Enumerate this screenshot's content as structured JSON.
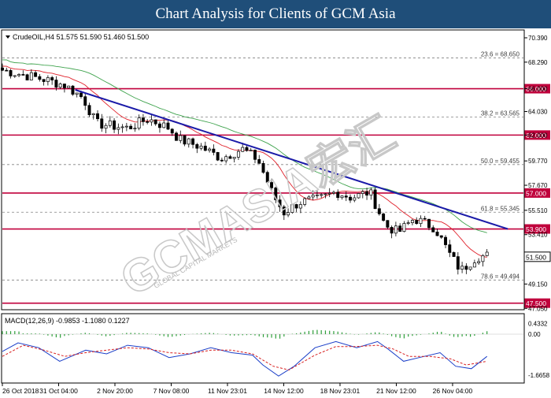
{
  "title": "Chart Analysis for Clients of GCM Asia",
  "watermark": "GCMASIA宏汇",
  "watermark_sub": "GLOBAL CAPITAL MARKETS",
  "chart_data": {
    "type": "candlestick",
    "symbol_info": "CrudeOIL,H4  51.575 51.590 51.460 51.500",
    "price_axis": {
      "ylim": [
        47.0,
        71.0
      ],
      "ticks": [
        "70.390",
        "68.290",
        "66.000",
        "64.030",
        "62.000",
        "59.770",
        "57.670",
        "55.510",
        "53.410",
        "51.500",
        "49.150",
        "47.050"
      ]
    },
    "x_labels": [
      "26 Oct 2018",
      "31 Oct 04:00",
      "2 Nov 20:00",
      "7 Nov 08:00",
      "11 Nov 23:01",
      "14 Nov 12:00",
      "18 Nov 23:01",
      "21 Nov 12:00",
      "26 Nov 04:00"
    ],
    "current_price": "51.500",
    "support_resistance": [
      {
        "value": 66.0,
        "label": "66.000"
      },
      {
        "value": 62.0,
        "label": "62.000"
      },
      {
        "value": 57.0,
        "label": "57.000"
      },
      {
        "value": 53.9,
        "label": "53.900"
      },
      {
        "value": 47.5,
        "label": "47.500"
      }
    ],
    "fibonacci": [
      {
        "value": 68.65,
        "label": "23.6 = 68.650"
      },
      {
        "value": 63.565,
        "label": "38.2 = 63.565"
      },
      {
        "value": 59.455,
        "label": "50.0 = 59.455"
      },
      {
        "value": 55.345,
        "label": "61.8 = 55.345"
      },
      {
        "value": 49.494,
        "label": "78.6 = 49.494"
      }
    ],
    "trendline": {
      "start": [
        0.14,
        65.9
      ],
      "end": [
        0.97,
        53.9
      ]
    },
    "close_path": [
      [
        0.0,
        67.6
      ],
      [
        0.04,
        67.2
      ],
      [
        0.08,
        66.8
      ],
      [
        0.12,
        66.3
      ],
      [
        0.155,
        65.2
      ],
      [
        0.18,
        63.0
      ],
      [
        0.24,
        62.6
      ],
      [
        0.28,
        63.4
      ],
      [
        0.32,
        62.6
      ],
      [
        0.34,
        61.6
      ],
      [
        0.38,
        61.0
      ],
      [
        0.42,
        60.0
      ],
      [
        0.46,
        60.8
      ],
      [
        0.49,
        59.9
      ],
      [
        0.52,
        56.8
      ],
      [
        0.54,
        55.3
      ],
      [
        0.57,
        56.2
      ],
      [
        0.61,
        56.5
      ],
      [
        0.64,
        57.1
      ],
      [
        0.67,
        56.6
      ],
      [
        0.705,
        57.1
      ],
      [
        0.735,
        54.2
      ],
      [
        0.76,
        53.6
      ],
      [
        0.79,
        54.8
      ],
      [
        0.83,
        54.0
      ],
      [
        0.86,
        51.6
      ],
      [
        0.88,
        50.3
      ],
      [
        0.91,
        51.5
      ],
      [
        0.93,
        51.6
      ]
    ],
    "macd": {
      "label": "MACD(12,26,9) -0.9853 -1.1080 0.1227",
      "ylim": [
        -1.95,
        0.8
      ],
      "ticks": [
        "0.4332",
        "0.00",
        "-1.6658"
      ],
      "main_path": [
        [
          0.0,
          -0.7
        ],
        [
          0.03,
          -0.35
        ],
        [
          0.07,
          -0.55
        ],
        [
          0.11,
          -1.1
        ],
        [
          0.16,
          -0.65
        ],
        [
          0.2,
          -0.8
        ],
        [
          0.24,
          -0.45
        ],
        [
          0.28,
          -0.55
        ],
        [
          0.32,
          -0.95
        ],
        [
          0.36,
          -0.8
        ],
        [
          0.4,
          -0.55
        ],
        [
          0.44,
          -0.75
        ],
        [
          0.48,
          -0.85
        ],
        [
          0.5,
          -1.25
        ],
        [
          0.53,
          -1.7
        ],
        [
          0.56,
          -1.3
        ],
        [
          0.6,
          -0.55
        ],
        [
          0.64,
          -0.3
        ],
        [
          0.68,
          -0.55
        ],
        [
          0.72,
          -0.3
        ],
        [
          0.74,
          -0.6
        ],
        [
          0.77,
          -1.1
        ],
        [
          0.8,
          -0.95
        ],
        [
          0.84,
          -0.75
        ],
        [
          0.87,
          -1.3
        ],
        [
          0.9,
          -1.4
        ],
        [
          0.93,
          -0.9
        ]
      ],
      "signal_path": [
        [
          0.0,
          -0.9
        ],
        [
          0.04,
          -0.45
        ],
        [
          0.08,
          -0.65
        ],
        [
          0.12,
          -0.9
        ],
        [
          0.16,
          -0.75
        ],
        [
          0.2,
          -0.65
        ],
        [
          0.24,
          -0.55
        ],
        [
          0.28,
          -0.6
        ],
        [
          0.32,
          -0.75
        ],
        [
          0.36,
          -0.8
        ],
        [
          0.4,
          -0.65
        ],
        [
          0.44,
          -0.65
        ],
        [
          0.48,
          -0.8
        ],
        [
          0.52,
          -1.3
        ],
        [
          0.55,
          -1.45
        ],
        [
          0.6,
          -0.85
        ],
        [
          0.64,
          -0.5
        ],
        [
          0.68,
          -0.5
        ],
        [
          0.72,
          -0.45
        ],
        [
          0.75,
          -0.6
        ],
        [
          0.78,
          -0.9
        ],
        [
          0.82,
          -0.9
        ],
        [
          0.86,
          -1.0
        ],
        [
          0.89,
          -1.25
        ],
        [
          0.93,
          -1.1
        ]
      ]
    },
    "colors": {
      "background": "#ffffff",
      "title_bg": "#1f4e79",
      "level_line": "#c0003c",
      "trendline": "#1a1aa8",
      "ma_fast": "#e0202a",
      "ma_slow": "#3fa34d",
      "macd_main": "#1a3ec8",
      "macd_signal": "#d82020",
      "histogram": "#2e9e3a"
    }
  }
}
